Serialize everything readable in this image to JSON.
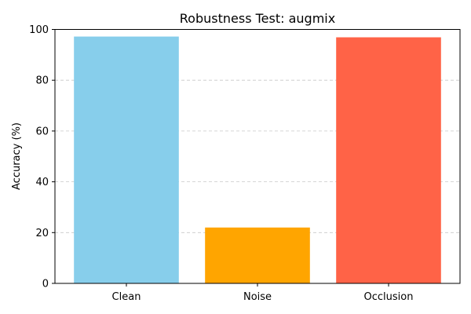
{
  "chart_data": {
    "type": "bar",
    "title": "Robustness Test: augmix",
    "xlabel": "",
    "ylabel": "Accuracy (%)",
    "categories": [
      "Clean",
      "Noise",
      "Occlusion"
    ],
    "values": [
      97.2,
      22.0,
      96.9
    ],
    "bar_colors": [
      "#87CEEB",
      "#FFA500",
      "#FF6347"
    ],
    "ylim": [
      0,
      100
    ],
    "yticks": [
      0,
      20,
      40,
      60,
      80,
      100
    ],
    "grid": {
      "y": true,
      "x": false,
      "style": "dashed",
      "color": "#c8c8c8"
    }
  }
}
